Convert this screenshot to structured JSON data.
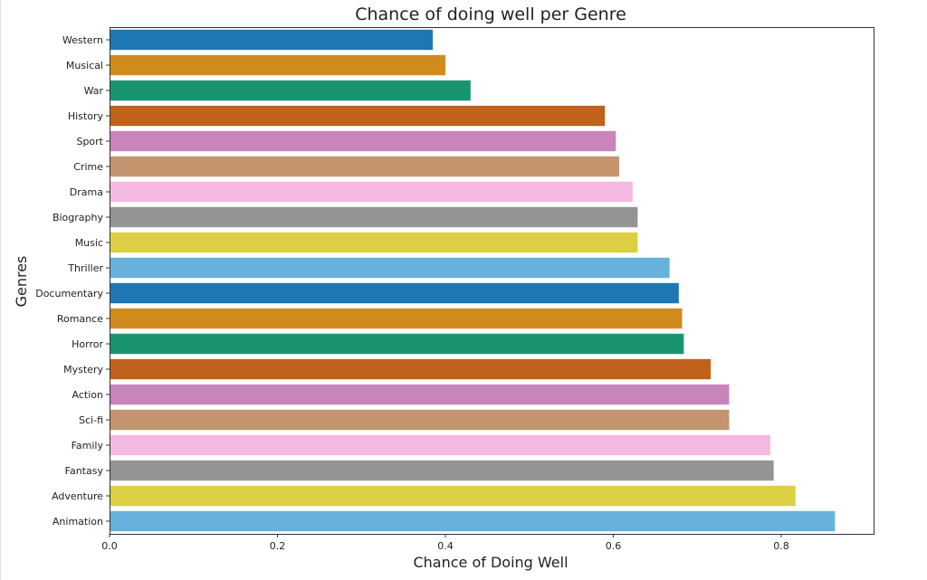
{
  "chart_data": {
    "type": "bar",
    "orientation": "horizontal",
    "title": "Chance of doing well per Genre",
    "xlabel": "Chance of Doing Well",
    "ylabel": "Genres",
    "xlim": [
      0,
      0.91
    ],
    "x_ticks": [
      0.0,
      0.2,
      0.4,
      0.6,
      0.8
    ],
    "x_tick_labels": [
      "0.0",
      "0.2",
      "0.4",
      "0.6",
      "0.8"
    ],
    "grid": false,
    "categories": [
      "Western",
      "Musical",
      "War",
      "History",
      "Sport",
      "Crime",
      "Drama",
      "Biography",
      "Music",
      "Thriller",
      "Documentary",
      "Romance",
      "Horror",
      "Mystery",
      "Action",
      "Sci-fi",
      "Family",
      "Fantasy",
      "Adventure",
      "Animation"
    ],
    "values": [
      0.385,
      0.4,
      0.43,
      0.59,
      0.603,
      0.607,
      0.623,
      0.629,
      0.629,
      0.667,
      0.678,
      0.682,
      0.684,
      0.716,
      0.738,
      0.738,
      0.787,
      0.791,
      0.817,
      0.864
    ],
    "colors": [
      "#1f77b4",
      "#d08a1e",
      "#1a9470",
      "#c0621c",
      "#c884bb",
      "#c4946e",
      "#f4b9e1",
      "#949494",
      "#dccf43",
      "#67b1dd"
    ]
  }
}
